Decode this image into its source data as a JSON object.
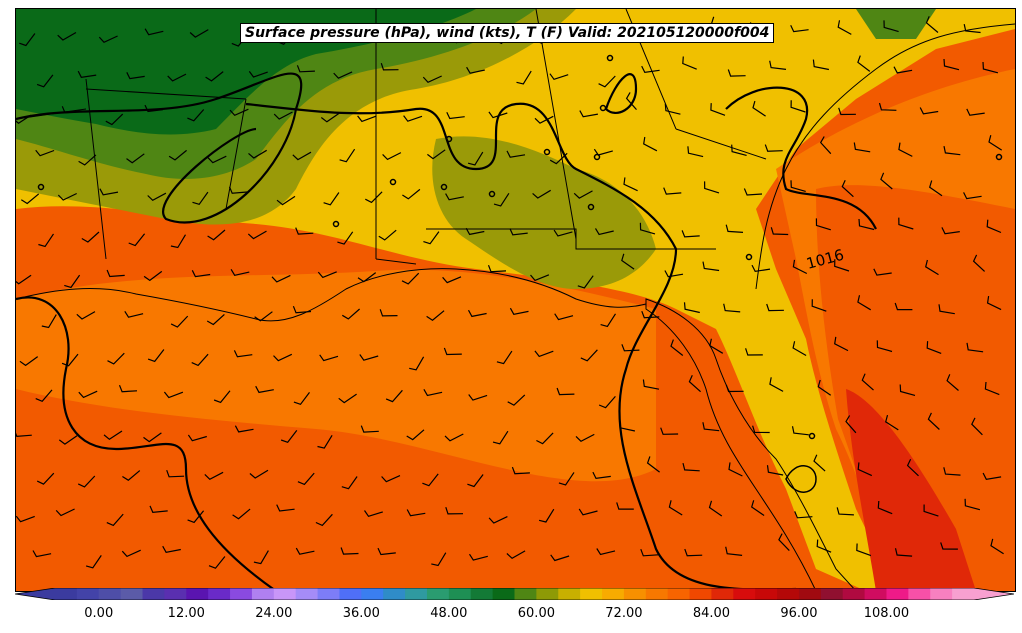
{
  "title": "Surface pressure (hPa), wind (kts), T (F) Valid: 202105120000f004",
  "isobar_label": "1016",
  "colorbar": {
    "ticks": [
      "0.00",
      "12.00",
      "24.00",
      "36.00",
      "48.00",
      "60.00",
      "72.00",
      "84.00",
      "96.00",
      "108.00"
    ],
    "tick_values": [
      0,
      12,
      24,
      36,
      48,
      60,
      72,
      84,
      96,
      108
    ],
    "min": -6,
    "max": 120,
    "step": 3,
    "colors": [
      "#3b3b9f",
      "#4343a8",
      "#4e4ea8",
      "#5b5ba8",
      "#4b38a8",
      "#5a2fb0",
      "#5a14b0",
      "#6a2ac8",
      "#8a4ae0",
      "#b080f0",
      "#c896f8",
      "#a58cf7",
      "#7d7df7",
      "#4f6ff7",
      "#3a7ef0",
      "#2f8cc8",
      "#2f9aa0",
      "#2a9c70",
      "#1e8f54",
      "#137a36",
      "#0a6a18",
      "#4f8614",
      "#8e9a06",
      "#c8b000",
      "#f0c000",
      "#f8ab00",
      "#f89000",
      "#f87800",
      "#f86400",
      "#f04800",
      "#e02808",
      "#d80c0c",
      "#c80808",
      "#b40808",
      "#a00a10",
      "#901030",
      "#b00a40",
      "#d00c60",
      "#ee1a88",
      "#f850a8",
      "#f880c0",
      "#f8a0d0"
    ],
    "extend": "both"
  },
  "map_regions": {
    "gulf_color": "#f25a00",
    "inland_yellow": "#f0c000",
    "olive": "#9a9a08",
    "green": "#0a6a18",
    "dark_green": "#137a36",
    "atlantic_orange": "#f87800",
    "warm_red": "#e02808"
  }
}
